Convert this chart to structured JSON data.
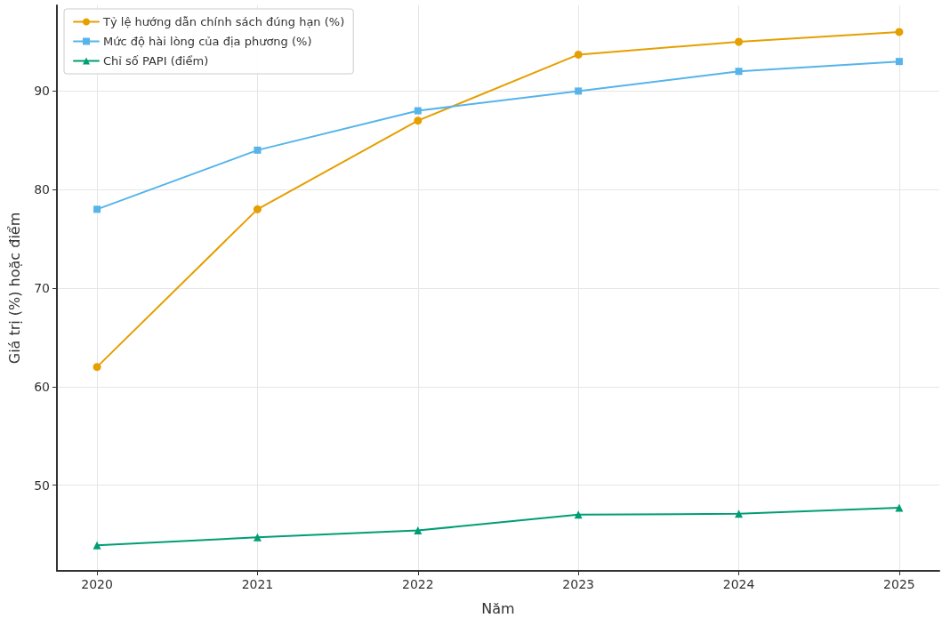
{
  "chart_data": {
    "type": "line",
    "xlabel": "Năm",
    "ylabel": "Giá trị (%) hoặc điểm",
    "x": [
      2020,
      2021,
      2022,
      2023,
      2024,
      2025
    ],
    "series": [
      {
        "name": "Tỷ lệ hướng dẫn chính sách đúng hạn (%)",
        "color": "#e69f00",
        "marker": "circle",
        "values": [
          62,
          78,
          87,
          93.7,
          95,
          96
        ]
      },
      {
        "name": "Mức độ hài lòng của địa phương (%)",
        "color": "#56b4e9",
        "marker": "square",
        "values": [
          78,
          84,
          88,
          90,
          92,
          93
        ]
      },
      {
        "name": "Chỉ số PAPI (điểm)",
        "color": "#009e73",
        "marker": "triangle",
        "values": [
          43.9,
          44.7,
          45.4,
          47,
          47.1,
          47.7
        ]
      }
    ],
    "xlim": [
      2019.75,
      2025.25
    ],
    "xticks": [
      2020,
      2021,
      2022,
      2023,
      2024,
      2025
    ],
    "ylim": [
      41.3,
      98.7
    ],
    "yticks": [
      50,
      60,
      70,
      80,
      90
    ],
    "grid": true,
    "legend": "top left",
    "line_style": "solid"
  }
}
